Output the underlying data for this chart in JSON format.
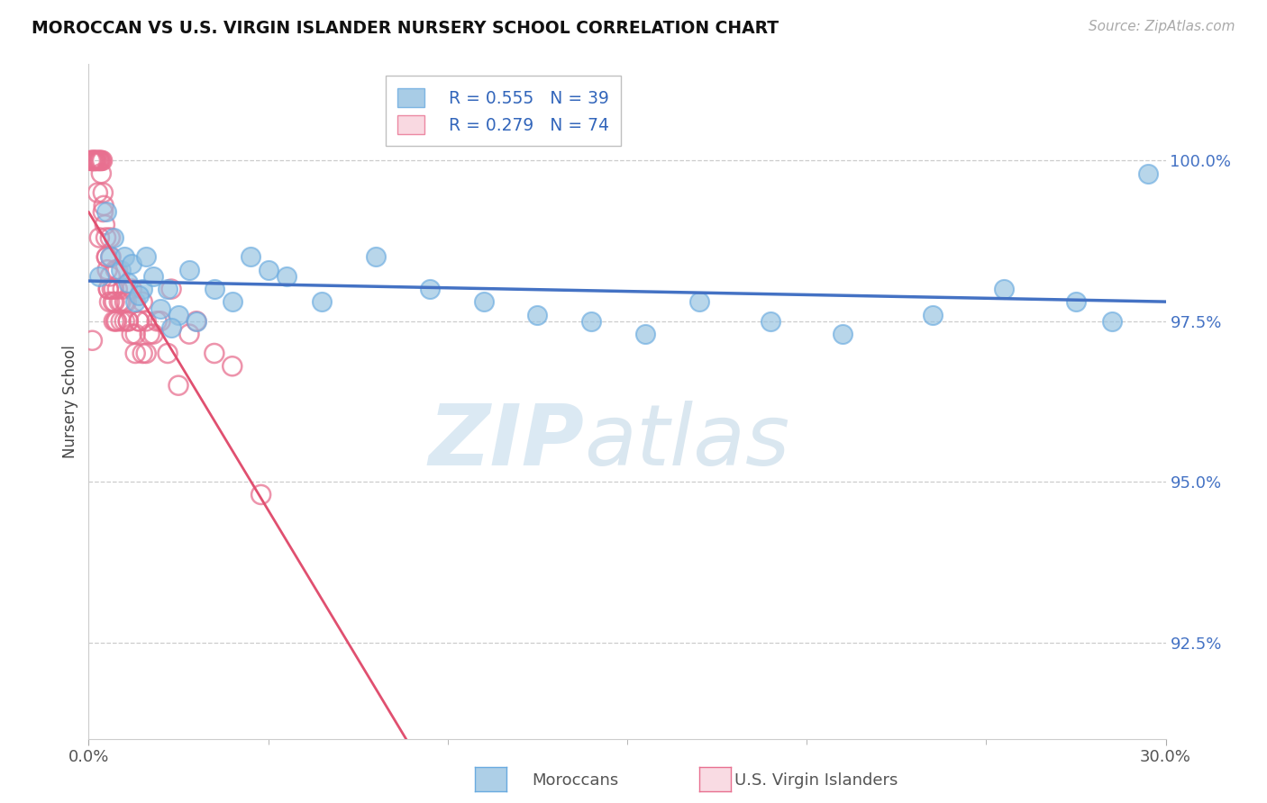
{
  "title": "MOROCCAN VS U.S. VIRGIN ISLANDER NURSERY SCHOOL CORRELATION CHART",
  "source": "Source: ZipAtlas.com",
  "ylabel": "Nursery School",
  "xlim": [
    0.0,
    30.0
  ],
  "ylim": [
    91.0,
    101.5
  ],
  "yticks": [
    100.0,
    97.5,
    95.0,
    92.5
  ],
  "ytick_labels": [
    "100.0%",
    "97.5%",
    "95.0%",
    "92.5%"
  ],
  "xtick_labels": [
    "0.0%",
    "30.0%"
  ],
  "legend_r_blue": "R = 0.555",
  "legend_n_blue": "N = 39",
  "legend_r_pink": "R = 0.279",
  "legend_n_pink": "N = 74",
  "blue_color": "#92c0e0",
  "blue_edge": "#6aabe0",
  "pink_color": "#f4a0b0",
  "pink_edge": "#e87090",
  "blue_line_color": "#4472c4",
  "pink_line_color": "#e05070",
  "watermark_zip": "ZIP",
  "watermark_atlas": "atlas",
  "blue_x": [
    0.3,
    0.5,
    0.6,
    0.7,
    0.9,
    1.0,
    1.1,
    1.2,
    1.3,
    1.5,
    1.6,
    1.8,
    2.0,
    2.2,
    2.5,
    2.8,
    3.0,
    3.5,
    4.0,
    4.5,
    5.0,
    5.5,
    6.5,
    8.0,
    9.5,
    11.0,
    12.5,
    14.0,
    15.5,
    17.0,
    19.0,
    21.0,
    23.5,
    25.5,
    27.5,
    28.5,
    29.5,
    1.4,
    2.3
  ],
  "blue_y": [
    98.2,
    99.2,
    98.5,
    98.8,
    98.3,
    98.5,
    98.1,
    98.4,
    97.8,
    98.0,
    98.5,
    98.2,
    97.7,
    98.0,
    97.6,
    98.3,
    97.5,
    98.0,
    97.8,
    98.5,
    98.3,
    98.2,
    97.8,
    98.5,
    98.0,
    97.8,
    97.6,
    97.5,
    97.3,
    97.8,
    97.5,
    97.3,
    97.6,
    98.0,
    97.8,
    97.5,
    99.8,
    97.9,
    97.4
  ],
  "pink_x": [
    0.05,
    0.08,
    0.1,
    0.12,
    0.15,
    0.18,
    0.2,
    0.22,
    0.25,
    0.28,
    0.3,
    0.32,
    0.35,
    0.38,
    0.4,
    0.42,
    0.45,
    0.48,
    0.5,
    0.52,
    0.55,
    0.58,
    0.6,
    0.62,
    0.65,
    0.68,
    0.7,
    0.72,
    0.75,
    0.78,
    0.8,
    0.85,
    0.9,
    0.95,
    1.0,
    1.05,
    1.1,
    1.2,
    1.3,
    1.4,
    1.5,
    1.6,
    1.8,
    2.0,
    2.2,
    2.5,
    2.8,
    3.0,
    3.5,
    4.0,
    0.3,
    0.5,
    0.7,
    0.9,
    1.1,
    1.3,
    1.5,
    1.7,
    0.4,
    0.6,
    0.8,
    1.0,
    1.2,
    1.4,
    1.6,
    1.9,
    2.3,
    4.8,
    0.25,
    0.55,
    0.75,
    0.15,
    0.35,
    0.1
  ],
  "pink_y": [
    100.0,
    100.0,
    100.0,
    100.0,
    100.0,
    100.0,
    100.0,
    100.0,
    100.0,
    100.0,
    100.0,
    100.0,
    100.0,
    100.0,
    99.5,
    99.3,
    99.0,
    98.8,
    98.5,
    98.3,
    98.0,
    97.8,
    98.2,
    98.5,
    98.0,
    97.8,
    97.5,
    97.8,
    98.3,
    97.5,
    98.0,
    97.8,
    97.5,
    98.0,
    97.5,
    97.8,
    97.5,
    97.3,
    97.0,
    97.5,
    97.8,
    97.5,
    97.3,
    97.5,
    97.0,
    96.5,
    97.3,
    97.5,
    97.0,
    96.8,
    98.8,
    98.5,
    98.0,
    97.8,
    97.5,
    97.3,
    97.0,
    97.3,
    99.2,
    98.8,
    98.3,
    97.8,
    98.0,
    97.5,
    97.0,
    97.5,
    98.0,
    94.8,
    99.5,
    98.0,
    97.5,
    100.0,
    99.8,
    97.2
  ]
}
